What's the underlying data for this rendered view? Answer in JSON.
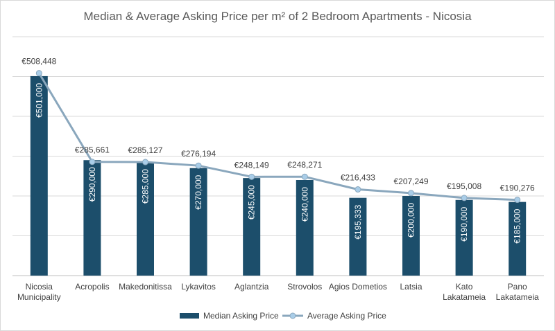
{
  "chart_data": {
    "type": "bar",
    "title": "Median & Average Asking Price per m² of 2 Bedroom Apartments - Nicosia",
    "categories": [
      [
        "Nicosia",
        "Municipality"
      ],
      [
        "Acropolis"
      ],
      [
        "Makedonitissa"
      ],
      [
        "Lykavitos"
      ],
      [
        "Aglantzia"
      ],
      [
        "Strovolos"
      ],
      [
        "Agios Dometios"
      ],
      [
        "Latsia"
      ],
      [
        "Kato",
        "Lakatameia"
      ],
      [
        "Pano",
        "Lakatameia"
      ]
    ],
    "series": [
      {
        "name": "Median Asking Price",
        "type": "bar",
        "color": "#1c4e6b",
        "values": [
          501000,
          290000,
          285000,
          270000,
          245000,
          240000,
          195333,
          200000,
          190000,
          185000
        ],
        "labels": [
          "€501,000",
          "€290,000",
          "€285,000",
          "€270,000",
          "€245,000",
          "€240,000",
          "€195,333",
          "€200,000",
          "€190,000",
          "€185,000"
        ]
      },
      {
        "name": "Average Asking Price",
        "type": "line",
        "color": "#8aa7bd",
        "marker_fill": "#a9cde8",
        "values": [
          508448,
          285661,
          285127,
          276194,
          248149,
          248271,
          216433,
          207249,
          195008,
          190276
        ],
        "labels": [
          "€508,448",
          "€285,661",
          "€285,127",
          "€276,194",
          "€248,149",
          "€248,271",
          "€216,433",
          "€207,249",
          "€195,008",
          "€190,276"
        ]
      }
    ],
    "ylim": [
      0,
      600000
    ],
    "y_gridline_step": 100000,
    "y_tick_labels_shown": false,
    "grid": true,
    "legend_position": "bottom"
  }
}
